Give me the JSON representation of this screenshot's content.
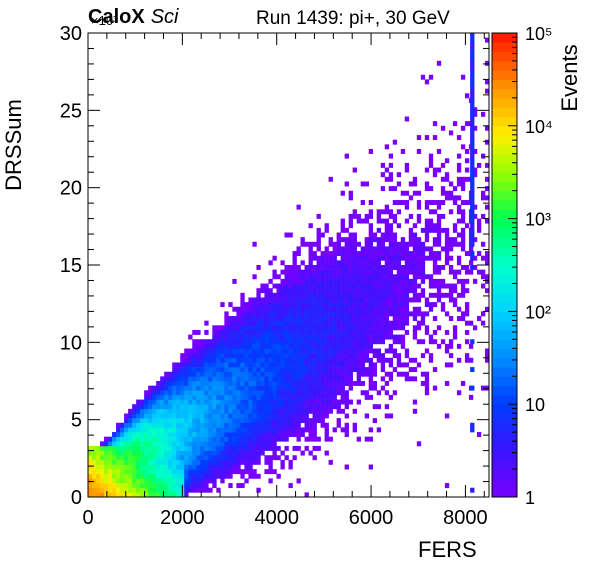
{
  "header": {
    "brand": "CaloX",
    "brand_sub": "Sci",
    "run_label": "Run 1439: pi+, 30 GeV",
    "y_exponent": "×10³"
  },
  "chart_data": {
    "type": "heatmap",
    "title": "Run 1439: pi+, 30 GeV",
    "xlabel": "FERS",
    "ylabel": "DRSSum",
    "zlabel": "Events",
    "xlim": [
      0,
      8500
    ],
    "ylim": [
      0,
      30
    ],
    "y_scale_factor": "×10³",
    "z_scale": "log",
    "zlim": [
      1,
      100000
    ],
    "x_ticks": [
      0,
      2000,
      4000,
      6000,
      8000
    ],
    "y_ticks": [
      0,
      5,
      10,
      15,
      20,
      25,
      30
    ],
    "z_ticks": [
      "1",
      "10",
      "10²",
      "10³",
      "10⁴",
      "10⁵"
    ],
    "bin_width_x": 85,
    "bin_height_y": 0.3,
    "grid": false,
    "colormap": "ROOT kBird-like rainbow (violet → blue → cyan → green → yellow → orange → red)",
    "description_points": [
      {
        "x": 300,
        "y": 0.5,
        "z": 20000
      },
      {
        "x": 800,
        "y": 1.5,
        "z": 3000
      },
      {
        "x": 1500,
        "y": 3,
        "z": 300
      },
      {
        "x": 2500,
        "y": 5,
        "z": 40
      },
      {
        "x": 3500,
        "y": 7.5,
        "z": 8
      },
      {
        "x": 5000,
        "y": 11,
        "z": 2
      },
      {
        "x": 8150,
        "y": 18,
        "z": 5
      }
    ]
  }
}
